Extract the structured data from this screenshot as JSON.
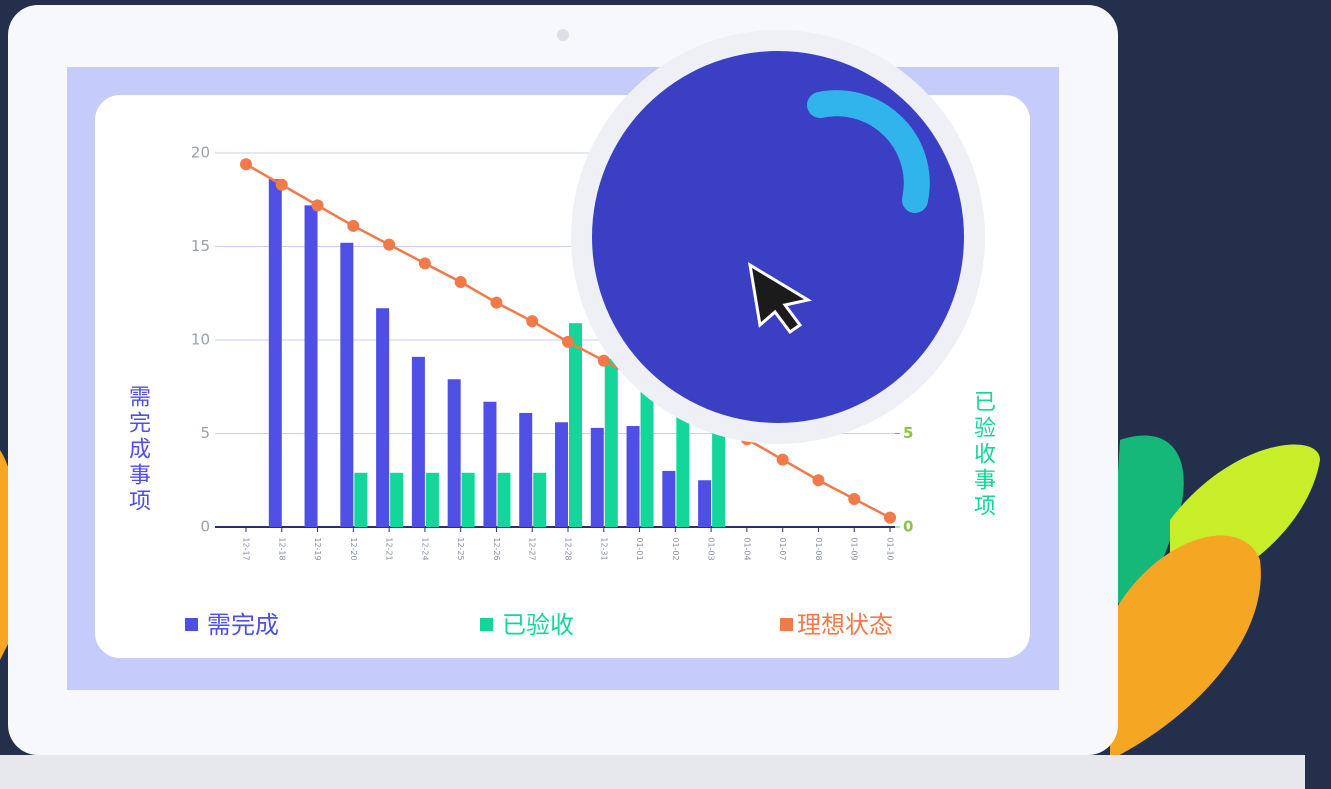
{
  "chart_data": {
    "type": "bar",
    "categories": [
      "12-17",
      "12-18",
      "12-19",
      "12-20",
      "12-21",
      "12-24",
      "12-25",
      "12-26",
      "12-27",
      "12-28",
      "12-31",
      "01-01",
      "01-02",
      "01-03",
      "01-04",
      "01-07",
      "01-08",
      "01-09",
      "01-10"
    ],
    "ylabel": "需完成事项",
    "y2label": "已验收事项",
    "series": [
      {
        "name": "需完成",
        "color": "#4f4fe6",
        "type": "bar",
        "values": [
          null,
          18.6,
          17.2,
          15.2,
          11.7,
          9.1,
          7.9,
          6.7,
          6.1,
          5.6,
          5.3,
          5.4,
          3.0,
          2.5,
          null,
          null,
          null,
          null,
          null
        ]
      },
      {
        "name": "已验收",
        "color": "#14d69a",
        "type": "bar",
        "axis": "y2",
        "values": [
          null,
          null,
          null,
          2.9,
          2.9,
          2.9,
          2.9,
          2.9,
          2.9,
          10.9,
          9.0,
          8.0,
          6.5,
          5.0,
          null,
          null,
          null,
          null,
          null
        ]
      },
      {
        "name": "理想状态",
        "color": "#f07a4a",
        "type": "line",
        "values": [
          19.4,
          18.3,
          17.2,
          16.1,
          15.1,
          14.1,
          13.1,
          12.0,
          11.0,
          9.9,
          8.9,
          7.9,
          6.8,
          5.8,
          4.7,
          3.6,
          2.5,
          1.5,
          0.5
        ]
      }
    ],
    "ylim": [
      0,
      20
    ],
    "yticks": [
      0,
      5,
      10,
      15,
      20
    ],
    "y2lim": [
      0,
      20
    ],
    "y2ticks": [
      0,
      5
    ],
    "grid": true
  }
}
